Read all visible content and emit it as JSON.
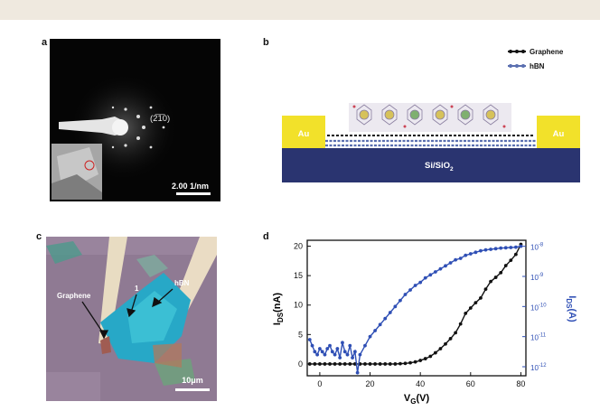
{
  "panel_labels": {
    "a": "a",
    "b": "b",
    "c": "c",
    "d": "d"
  },
  "panel_a": {
    "spot_label": "(2̅1̅0)",
    "scale_bar": "2.00 1/nm"
  },
  "panel_b": {
    "legend": [
      "Graphene",
      "hBN"
    ],
    "electrode_label": "Au",
    "substrate_label": "Si/SiO",
    "substrate_subscript": "2",
    "colors": {
      "au": "#f2e12a",
      "substrate": "#2a3470",
      "graphene": "#111111",
      "hbn": "#5a6fb0"
    }
  },
  "panel_c": {
    "labels": {
      "graphene": "Graphene",
      "one": "1",
      "hbn": "hBN"
    },
    "scale_bar": "10μm"
  },
  "chart_data": {
    "type": "line",
    "xlabel_main": "V",
    "xlabel_sub": "G",
    "xlabel_unit": "(V)",
    "ylabel_left_main": "I",
    "ylabel_left_sub": "DS",
    "ylabel_left_unit": "(nA)",
    "ylabel_right_main": "I",
    "ylabel_right_sub": "DS",
    "ylabel_right_unit": "(A)",
    "xlim": [
      -5,
      82
    ],
    "ylim_left": [
      -2,
      21
    ],
    "ylim_right_log10": [
      -12.3,
      -7.8
    ],
    "x_ticks": [
      "0",
      "20",
      "40",
      "60",
      "80"
    ],
    "y_left_ticks": [
      "0",
      "5",
      "10",
      "15",
      "20"
    ],
    "y_right_ticks": [
      {
        "base": "10",
        "exp": "-12"
      },
      {
        "base": "10",
        "exp": "-11"
      },
      {
        "base": "10",
        "exp": "-10"
      },
      {
        "base": "10",
        "exp": "-9"
      },
      {
        "base": "10",
        "exp": "-8"
      }
    ],
    "grid": false,
    "colors": {
      "linear": "#111111",
      "log": "#2f4fb5"
    },
    "series": [
      {
        "axis": "left",
        "x": [
          -4,
          -2,
          0,
          2,
          4,
          6,
          8,
          10,
          12,
          14,
          16,
          18,
          20,
          22,
          24,
          26,
          28,
          30,
          32,
          34,
          36,
          38,
          40,
          42,
          44,
          46,
          48,
          50,
          52,
          54,
          56,
          58,
          60,
          62,
          64,
          66,
          68,
          70,
          72,
          74,
          76,
          78,
          80
        ],
        "y": [
          0,
          0,
          0,
          0,
          0,
          0,
          0,
          0,
          0,
          0,
          0,
          0,
          0,
          0,
          0,
          0,
          0,
          0,
          0.05,
          0.1,
          0.2,
          0.35,
          0.6,
          0.9,
          1.3,
          1.9,
          2.6,
          3.4,
          4.3,
          5.3,
          6.8,
          8.6,
          9.5,
          10.4,
          11.2,
          12.7,
          14.0,
          14.7,
          15.5,
          16.7,
          17.6,
          18.6,
          20.3
        ]
      },
      {
        "axis": "right",
        "x": [
          -4,
          -3,
          -2,
          -1,
          0,
          1,
          2,
          3,
          4,
          5,
          6,
          7,
          8,
          9,
          10,
          11,
          12,
          13,
          14,
          15,
          16,
          18,
          20,
          22,
          24,
          26,
          28,
          30,
          32,
          34,
          36,
          38,
          40,
          42,
          44,
          46,
          48,
          50,
          52,
          54,
          56,
          58,
          60,
          62,
          64,
          66,
          68,
          70,
          72,
          74,
          76,
          78,
          80
        ],
        "log_y": [
          -11.1,
          -11.3,
          -11.5,
          -11.6,
          -11.4,
          -11.5,
          -11.6,
          -11.4,
          -11.3,
          -11.5,
          -11.6,
          -11.4,
          -11.7,
          -11.2,
          -11.5,
          -11.6,
          -11.3,
          -11.7,
          -11.5,
          -12.2,
          -11.6,
          -11.3,
          -11.0,
          -10.8,
          -10.6,
          -10.4,
          -10.2,
          -10.0,
          -9.8,
          -9.6,
          -9.45,
          -9.3,
          -9.2,
          -9.05,
          -8.95,
          -8.85,
          -8.75,
          -8.65,
          -8.55,
          -8.45,
          -8.4,
          -8.3,
          -8.25,
          -8.2,
          -8.15,
          -8.12,
          -8.1,
          -8.08,
          -8.06,
          -8.05,
          -8.04,
          -8.03,
          -8.0
        ]
      }
    ]
  }
}
